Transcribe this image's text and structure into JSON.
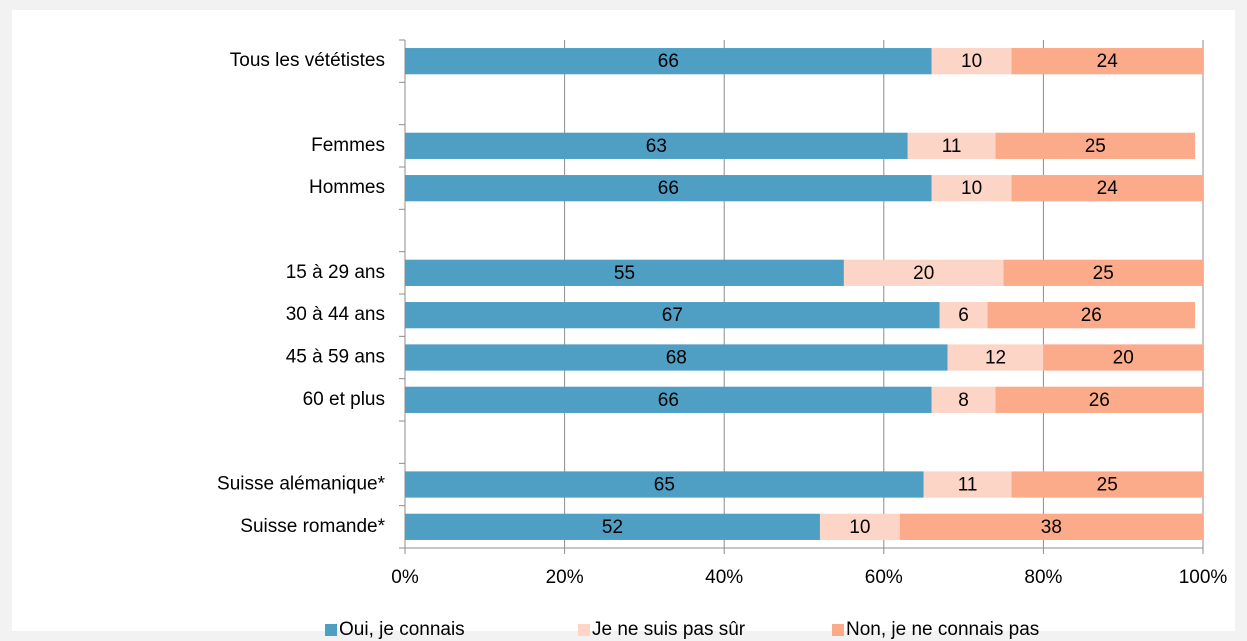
{
  "chart_data": {
    "type": "bar",
    "orientation": "horizontal",
    "stacked": true,
    "categories": [
      "Tous les vététistes",
      null,
      "Femmes",
      "Hommes",
      null,
      "15 à 29 ans",
      "30 à 44 ans",
      "45 à 59 ans",
      "60 et plus",
      null,
      "Suisse alémanique*",
      "Suisse romande*"
    ],
    "series": [
      {
        "name": "Oui, je connais",
        "color": "#4f9ec4",
        "values": [
          66,
          null,
          63,
          66,
          null,
          55,
          67,
          68,
          66,
          null,
          65,
          52
        ]
      },
      {
        "name": "Je ne suis pas sûr",
        "color": "#fdd5c6",
        "values": [
          10,
          null,
          11,
          10,
          null,
          20,
          6,
          12,
          8,
          null,
          11,
          10
        ]
      },
      {
        "name": "Non, je ne connais pas",
        "color": "#fbaa8a",
        "values": [
          24,
          null,
          25,
          24,
          null,
          25,
          26,
          20,
          26,
          null,
          25,
          38
        ]
      }
    ],
    "xlim": [
      0,
      100
    ],
    "xticks": [
      {
        "value": 0,
        "label": "0%"
      },
      {
        "value": 20,
        "label": "20%"
      },
      {
        "value": 40,
        "label": "40%"
      },
      {
        "value": 60,
        "label": "60%"
      },
      {
        "value": 80,
        "label": "80%"
      },
      {
        "value": 100,
        "label": "100%"
      }
    ],
    "grid": true,
    "legend": "bottom"
  }
}
